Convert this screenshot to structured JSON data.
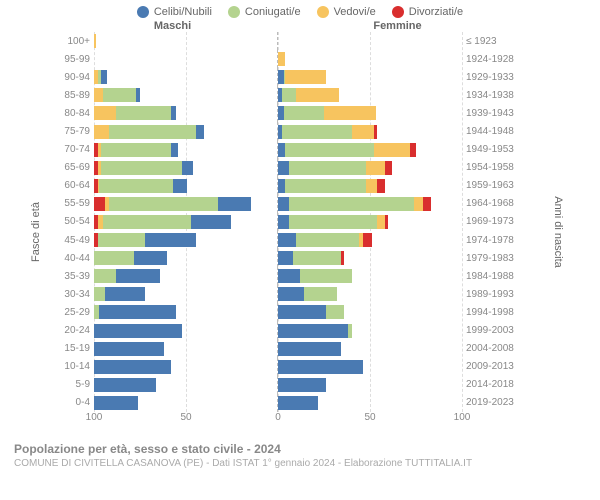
{
  "legend": [
    {
      "label": "Celibi/Nubili",
      "color": "#4a7ab2"
    },
    {
      "label": "Coniugati/e",
      "color": "#b4d38f"
    },
    {
      "label": "Vedovi/e",
      "color": "#f7c45f"
    },
    {
      "label": "Divorziati/e",
      "color": "#d92e2e"
    }
  ],
  "gender": {
    "left": "Maschi",
    "right": "Femmine"
  },
  "axis": {
    "left": "Fasce di età",
    "right": "Anni di nascita"
  },
  "xmax": 100,
  "xticks": [
    100,
    50,
    0,
    50,
    100
  ],
  "grid_positions_pct": [
    0,
    25,
    50,
    75,
    100
  ],
  "colors": {
    "celibi": "#4a7ab2",
    "coniugati": "#b4d38f",
    "vedovi": "#f7c45f",
    "divorziati": "#d92e2e",
    "grid": "#dddddd",
    "center_line": "#bbbbbb",
    "text": "#666666",
    "background": "#ffffff"
  },
  "footer": {
    "title": "Popolazione per età, sesso e stato civile - 2024",
    "sub": "COMUNE DI CIVITELLA CASANOVA (PE) - Dati ISTAT 1° gennaio 2024 - Elaborazione TUTTITALIA.IT"
  },
  "rows": [
    {
      "age": "100+",
      "birth": "≤ 1923",
      "m": {
        "c": 0,
        "m": 0,
        "w": 1,
        "d": 0
      },
      "f": {
        "c": 0,
        "m": 0,
        "w": 0,
        "d": 0
      }
    },
    {
      "age": "95-99",
      "birth": "1924-1928",
      "m": {
        "c": 0,
        "m": 0,
        "w": 0,
        "d": 0
      },
      "f": {
        "c": 0,
        "m": 0,
        "w": 4,
        "d": 0
      }
    },
    {
      "age": "90-94",
      "birth": "1929-1933",
      "m": {
        "c": 3,
        "m": 2,
        "w": 2,
        "d": 0
      },
      "f": {
        "c": 3,
        "m": 1,
        "w": 22,
        "d": 0
      }
    },
    {
      "age": "85-89",
      "birth": "1934-1938",
      "m": {
        "c": 2,
        "m": 18,
        "w": 5,
        "d": 0
      },
      "f": {
        "c": 2,
        "m": 8,
        "w": 23,
        "d": 0
      }
    },
    {
      "age": "80-84",
      "birth": "1939-1943",
      "m": {
        "c": 3,
        "m": 30,
        "w": 12,
        "d": 0
      },
      "f": {
        "c": 3,
        "m": 22,
        "w": 28,
        "d": 0
      }
    },
    {
      "age": "75-79",
      "birth": "1944-1948",
      "m": {
        "c": 4,
        "m": 48,
        "w": 8,
        "d": 0
      },
      "f": {
        "c": 2,
        "m": 38,
        "w": 12,
        "d": 2
      }
    },
    {
      "age": "70-74",
      "birth": "1949-1953",
      "m": {
        "c": 4,
        "m": 38,
        "w": 2,
        "d": 2
      },
      "f": {
        "c": 4,
        "m": 48,
        "w": 20,
        "d": 3
      }
    },
    {
      "age": "65-69",
      "birth": "1954-1958",
      "m": {
        "c": 6,
        "m": 44,
        "w": 2,
        "d": 2
      },
      "f": {
        "c": 6,
        "m": 42,
        "w": 10,
        "d": 4
      }
    },
    {
      "age": "60-64",
      "birth": "1959-1963",
      "m": {
        "c": 8,
        "m": 40,
        "w": 1,
        "d": 2
      },
      "f": {
        "c": 4,
        "m": 44,
        "w": 6,
        "d": 4
      }
    },
    {
      "age": "55-59",
      "birth": "1964-1968",
      "m": {
        "c": 18,
        "m": 60,
        "w": 2,
        "d": 6
      },
      "f": {
        "c": 6,
        "m": 68,
        "w": 5,
        "d": 4
      }
    },
    {
      "age": "50-54",
      "birth": "1969-1973",
      "m": {
        "c": 22,
        "m": 48,
        "w": 3,
        "d": 2
      },
      "f": {
        "c": 6,
        "m": 48,
        "w": 4,
        "d": 2
      }
    },
    {
      "age": "45-49",
      "birth": "1974-1978",
      "m": {
        "c": 28,
        "m": 26,
        "w": 0,
        "d": 2
      },
      "f": {
        "c": 10,
        "m": 34,
        "w": 2,
        "d": 5
      }
    },
    {
      "age": "40-44",
      "birth": "1979-1983",
      "m": {
        "c": 18,
        "m": 22,
        "w": 0,
        "d": 0
      },
      "f": {
        "c": 8,
        "m": 26,
        "w": 0,
        "d": 2
      }
    },
    {
      "age": "35-39",
      "birth": "1984-1988",
      "m": {
        "c": 24,
        "m": 12,
        "w": 0,
        "d": 0
      },
      "f": {
        "c": 12,
        "m": 28,
        "w": 0,
        "d": 0
      }
    },
    {
      "age": "30-34",
      "birth": "1989-1993",
      "m": {
        "c": 22,
        "m": 6,
        "w": 0,
        "d": 0
      },
      "f": {
        "c": 14,
        "m": 18,
        "w": 0,
        "d": 0
      }
    },
    {
      "age": "25-29",
      "birth": "1994-1998",
      "m": {
        "c": 42,
        "m": 3,
        "w": 0,
        "d": 0
      },
      "f": {
        "c": 26,
        "m": 10,
        "w": 0,
        "d": 0
      }
    },
    {
      "age": "20-24",
      "birth": "1999-2003",
      "m": {
        "c": 48,
        "m": 0,
        "w": 0,
        "d": 0
      },
      "f": {
        "c": 38,
        "m": 2,
        "w": 0,
        "d": 0
      }
    },
    {
      "age": "15-19",
      "birth": "2004-2008",
      "m": {
        "c": 38,
        "m": 0,
        "w": 0,
        "d": 0
      },
      "f": {
        "c": 34,
        "m": 0,
        "w": 0,
        "d": 0
      }
    },
    {
      "age": "10-14",
      "birth": "2009-2013",
      "m": {
        "c": 42,
        "m": 0,
        "w": 0,
        "d": 0
      },
      "f": {
        "c": 46,
        "m": 0,
        "w": 0,
        "d": 0
      }
    },
    {
      "age": "5-9",
      "birth": "2014-2018",
      "m": {
        "c": 34,
        "m": 0,
        "w": 0,
        "d": 0
      },
      "f": {
        "c": 26,
        "m": 0,
        "w": 0,
        "d": 0
      }
    },
    {
      "age": "0-4",
      "birth": "2019-2023",
      "m": {
        "c": 24,
        "m": 0,
        "w": 0,
        "d": 0
      },
      "f": {
        "c": 22,
        "m": 0,
        "w": 0,
        "d": 0
      }
    }
  ]
}
